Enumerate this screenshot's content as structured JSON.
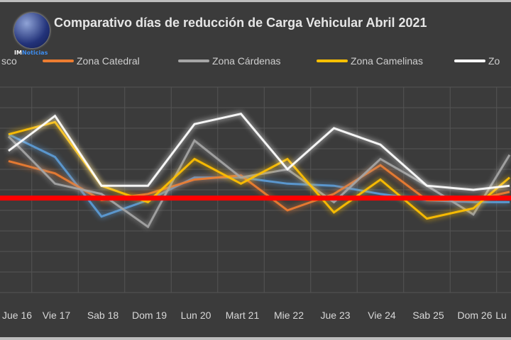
{
  "chart_data": {
    "type": "line",
    "title": "Comparativo días de reducción de Carga Vehicular Abril 2021",
    "xlabel": "",
    "ylabel": "",
    "ylim": [
      0,
      10
    ],
    "grid": true,
    "legend_position": "top",
    "categories": [
      "Jue 16",
      "Vie 17",
      "Sab 18",
      "Dom 19",
      "Lun 20",
      "Mart 21",
      "Mie 22",
      "Jue 23",
      "Vie 24",
      "Sab 25",
      "Dom 26",
      "Lu"
    ],
    "series": [
      {
        "name": "sco",
        "color": "#5b9bd5",
        "values": [
          7.7,
          6.6,
          3.7,
          4.5,
          5.6,
          5.6,
          5.3,
          5.2,
          4.8,
          4.5,
          4.4,
          4.4
        ]
      },
      {
        "name": "Zona Catedral",
        "color": "#ed7d31",
        "values": [
          6.4,
          5.8,
          4.5,
          4.8,
          5.5,
          5.7,
          4.0,
          4.8,
          6.2,
          4.5,
          4.5,
          4.9
        ]
      },
      {
        "name": "Zona Cárdenas",
        "color": "#a5a5a5",
        "values": [
          7.6,
          5.3,
          4.8,
          3.2,
          7.4,
          5.6,
          6.0,
          4.4,
          6.5,
          5.2,
          3.8,
          6.7
        ]
      },
      {
        "name": "Zona Camelinas",
        "color": "#ffc000",
        "values": [
          7.7,
          8.3,
          5.2,
          4.4,
          6.5,
          5.3,
          6.5,
          3.9,
          5.5,
          3.6,
          4.1,
          5.6
        ]
      },
      {
        "name": "Zo",
        "color": "#ffffff",
        "values": [
          6.9,
          8.6,
          5.2,
          5.2,
          8.2,
          8.7,
          6.0,
          8.0,
          7.2,
          5.2,
          5.0,
          5.2
        ]
      }
    ],
    "reference_line": {
      "color": "#ff0000",
      "value": 4.6
    }
  },
  "logo": {
    "text_a": "IM",
    "text_b": "Noticias"
  }
}
